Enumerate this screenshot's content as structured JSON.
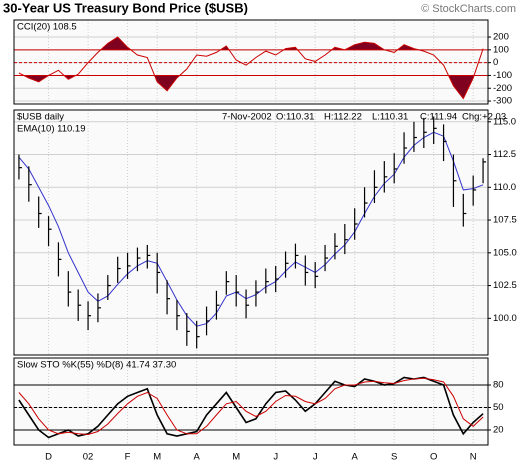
{
  "title": "30-Year US Treasury Bond Price ($USB)",
  "credit": "© StockCharts.com",
  "chart_data": [
    {
      "type": "cci",
      "title": "CCI(20) 108.5",
      "color": "#cc0000",
      "fill_color": "#800020",
      "overbought": 100,
      "oversold": -100,
      "values": [
        -80,
        -120,
        -150,
        -100,
        -60,
        -130,
        -90,
        0,
        80,
        150,
        200,
        120,
        60,
        40,
        -150,
        -220,
        -120,
        -50,
        60,
        50,
        80,
        130,
        20,
        -20,
        40,
        90,
        60,
        110,
        120,
        30,
        10,
        60,
        120,
        100,
        140,
        160,
        150,
        100,
        80,
        140,
        110,
        90,
        60,
        -20,
        -180,
        -280,
        -120,
        108.5
      ],
      "ylim": [
        -323,
        333
      ],
      "yticks": [
        200,
        100,
        0,
        -100,
        -200,
        -300
      ],
      "grid": true
    },
    {
      "type": "ohlc",
      "symbol": "$USB daily",
      "date": "7-Nov-2002",
      "open_label": "O:110.31",
      "high_label": "H:112.22",
      "low_label": "L:110.31",
      "close_label": "C:111.94",
      "change_label": "Chg:+2.03",
      "color": "#000000",
      "high": [
        112.5,
        111.6,
        109.3,
        107.8,
        105.8,
        103.6,
        102.2,
        101.3,
        101.9,
        103.3,
        104.7,
        105.0,
        105.4,
        105.6,
        105.0,
        102.9,
        101.4,
        100.4,
        99.8,
        100.9,
        102.1,
        103.6,
        103.3,
        102.2,
        102.9,
        103.8,
        104.0,
        105.1,
        105.7,
        104.8,
        104.3,
        105.6,
        106.5,
        107.2,
        108.4,
        110.0,
        111.3,
        112.0,
        112.6,
        114.2,
        115.0,
        115.3,
        115.4,
        114.8,
        112.5,
        109.5,
        110.9,
        112.22
      ],
      "low": [
        110.6,
        108.9,
        106.9,
        105.5,
        103.2,
        100.9,
        99.8,
        99.1,
        99.7,
        101.4,
        102.7,
        103.0,
        103.6,
        103.8,
        101.9,
        100.3,
        99.1,
        97.9,
        97.7,
        98.7,
        99.9,
        101.8,
        100.9,
        100.0,
        100.9,
        101.9,
        102.0,
        103.1,
        103.8,
        102.5,
        102.3,
        103.6,
        104.5,
        104.9,
        106.0,
        107.7,
        108.8,
        109.6,
        110.3,
        111.8,
        112.7,
        113.0,
        113.3,
        112.0,
        108.5,
        107.0,
        108.6,
        110.31
      ],
      "close": [
        111.5,
        110.2,
        108.0,
        106.8,
        104.5,
        102.0,
        101.0,
        100.2,
        100.8,
        102.5,
        103.8,
        104.0,
        104.6,
        104.8,
        103.5,
        101.5,
        100.2,
        99.0,
        98.6,
        99.8,
        101.0,
        102.8,
        102.0,
        101.0,
        102.0,
        102.8,
        103.0,
        104.2,
        104.8,
        103.5,
        103.2,
        104.6,
        105.5,
        106.0,
        107.2,
        108.8,
        110.0,
        110.8,
        111.4,
        113.0,
        113.8,
        114.2,
        114.5,
        113.5,
        110.5,
        108.0,
        109.8,
        111.94
      ],
      "series": [
        {
          "name": "EMA(10) 110.19",
          "color": "#3333cc",
          "values": [
            112.3,
            111.4,
            110.0,
            108.6,
            107.0,
            105.0,
            103.5,
            102.0,
            101.3,
            101.7,
            102.6,
            103.4,
            104.0,
            104.4,
            104.2,
            102.8,
            101.4,
            100.2,
            99.4,
            99.6,
            100.4,
            101.7,
            102.0,
            101.5,
            101.8,
            102.4,
            102.8,
            103.6,
            104.3,
            103.9,
            103.5,
            104.1,
            104.9,
            105.6,
            106.6,
            108.0,
            109.3,
            110.3,
            111.0,
            112.3,
            113.2,
            113.8,
            114.2,
            113.9,
            112.0,
            109.8,
            109.9,
            110.19
          ]
        }
      ],
      "ylim": [
        97.2,
        115.9
      ],
      "yticks": [
        {
          "value": 100,
          "label": "100.0"
        },
        102.5,
        {
          "value": 105,
          "label": "105.0"
        },
        107.5,
        {
          "value": 110,
          "label": "110.0"
        },
        112.5,
        {
          "value": 115,
          "label": "115.0"
        }
      ],
      "grid": true
    },
    {
      "type": "stochastic",
      "title": "Slow STO %K(55) %D(8) 41.74 37.30",
      "overbought": 80,
      "oversold": 20,
      "categories": [
        null,
        null,
        null,
        "D",
        null,
        null,
        null,
        "02",
        null,
        null,
        null,
        "F",
        null,
        null,
        "M",
        null,
        null,
        null,
        "A",
        null,
        null,
        null,
        "M",
        null,
        null,
        null,
        "J",
        null,
        null,
        null,
        "J",
        null,
        null,
        null,
        "A",
        null,
        null,
        null,
        "S",
        null,
        null,
        null,
        "O",
        null,
        null,
        null,
        "N",
        null
      ],
      "series": [
        {
          "name": "%K(55)",
          "color": "#000000",
          "values": [
            60,
            40,
            20,
            10,
            15,
            20,
            12,
            15,
            25,
            40,
            55,
            65,
            70,
            75,
            40,
            15,
            12,
            15,
            18,
            40,
            55,
            70,
            50,
            30,
            35,
            55,
            70,
            72,
            60,
            45,
            55,
            70,
            85,
            80,
            78,
            88,
            85,
            80,
            82,
            90,
            88,
            90,
            85,
            80,
            40,
            15,
            30,
            41.74
          ]
        },
        {
          "name": "%D(8)",
          "color": "#cc0000",
          "values": [
            70,
            55,
            35,
            20,
            15,
            17,
            15,
            14,
            18,
            28,
            42,
            55,
            65,
            70,
            62,
            40,
            20,
            15,
            15,
            25,
            40,
            55,
            58,
            45,
            38,
            45,
            58,
            66,
            65,
            58,
            55,
            62,
            75,
            80,
            80,
            84,
            85,
            83,
            82,
            86,
            88,
            89,
            87,
            84,
            65,
            35,
            25,
            37.3
          ]
        }
      ],
      "ylim": [
        0,
        116
      ],
      "yticks": [
        80,
        50,
        20
      ],
      "grid": true
    }
  ]
}
